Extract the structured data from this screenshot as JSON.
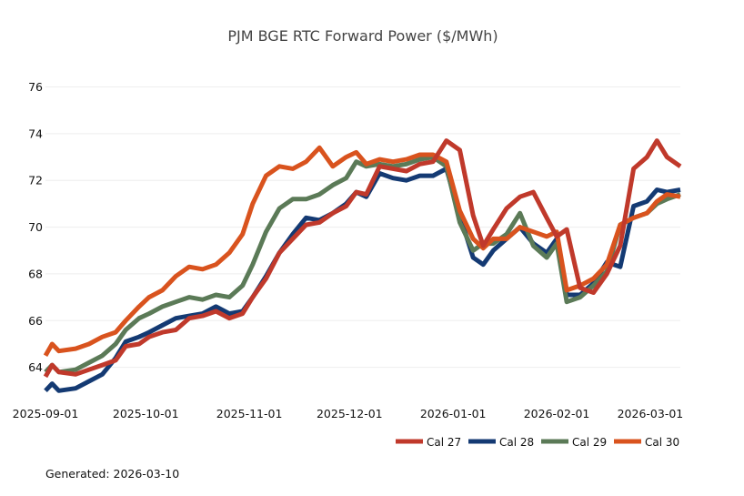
{
  "footer": {
    "generated": "Generated: 2026-03-10"
  },
  "chart_data": {
    "type": "line",
    "title": "PJM BGE RTC Forward Power ($/MWh)",
    "xlabel": "",
    "ylabel": "",
    "ylim": [
      62.7,
      76.8
    ],
    "xlim": [
      "2025-09-01",
      "2026-03-10"
    ],
    "grid": "horizontal",
    "legend_position": "bottom-right",
    "yticks": [
      64,
      66,
      68,
      70,
      72,
      74,
      76
    ],
    "xticks": [
      "2025-09-01",
      "2025-10-01",
      "2025-11-01",
      "2025-12-01",
      "2026-01-01",
      "2026-02-01",
      "2026-03-01"
    ],
    "x": [
      "2025-09-01",
      "2025-09-03",
      "2025-09-05",
      "2025-09-10",
      "2025-09-14",
      "2025-09-18",
      "2025-09-22",
      "2025-09-25",
      "2025-09-29",
      "2025-10-02",
      "2025-10-06",
      "2025-10-10",
      "2025-10-14",
      "2025-10-18",
      "2025-10-22",
      "2025-10-26",
      "2025-10-30",
      "2025-11-02",
      "2025-11-06",
      "2025-11-10",
      "2025-11-14",
      "2025-11-18",
      "2025-11-22",
      "2025-11-26",
      "2025-11-30",
      "2025-12-03",
      "2025-12-06",
      "2025-12-10",
      "2025-12-14",
      "2025-12-18",
      "2025-12-22",
      "2025-12-26",
      "2025-12-30",
      "2026-01-03",
      "2026-01-07",
      "2026-01-10",
      "2026-01-13",
      "2026-01-17",
      "2026-01-21",
      "2026-01-25",
      "2026-01-29",
      "2026-02-01",
      "2026-02-04",
      "2026-02-08",
      "2026-02-12",
      "2026-02-16",
      "2026-02-20",
      "2026-02-24",
      "2026-02-28",
      "2026-03-03",
      "2026-03-06",
      "2026-03-10"
    ],
    "series": [
      {
        "name": "Cal 27",
        "color": "#c0392b",
        "values": [
          63.6,
          64.1,
          63.8,
          63.7,
          63.9,
          64.1,
          64.3,
          64.9,
          65.0,
          65.3,
          65.5,
          65.6,
          66.1,
          66.2,
          66.4,
          66.1,
          66.3,
          67.0,
          67.8,
          68.9,
          69.5,
          70.1,
          70.2,
          70.6,
          70.9,
          71.5,
          71.4,
          72.6,
          72.5,
          72.4,
          72.7,
          72.8,
          73.7,
          73.3,
          70.5,
          69.2,
          69.9,
          70.8,
          71.3,
          71.5,
          70.4,
          69.6,
          69.9,
          67.4,
          67.2,
          68.0,
          69.2,
          72.5,
          73.0,
          73.7,
          73.0,
          72.6
        ]
      },
      {
        "name": "Cal 28",
        "color": "#143a73",
        "values": [
          63.0,
          63.3,
          63.0,
          63.1,
          63.4,
          63.7,
          64.4,
          65.1,
          65.3,
          65.5,
          65.8,
          66.1,
          66.2,
          66.3,
          66.6,
          66.3,
          66.4,
          67.0,
          67.9,
          68.9,
          69.7,
          70.4,
          70.3,
          70.6,
          71.0,
          71.5,
          71.3,
          72.3,
          72.1,
          72.0,
          72.2,
          72.2,
          72.5,
          70.5,
          68.7,
          68.4,
          69.0,
          69.5,
          70.0,
          69.3,
          68.9,
          69.5,
          67.1,
          67.1,
          67.6,
          68.5,
          68.3,
          70.9,
          71.1,
          71.6,
          71.5,
          71.6
        ]
      },
      {
        "name": "Cal 29",
        "color": "#5b7a57",
        "values": [
          63.8,
          64.1,
          63.8,
          63.9,
          64.2,
          64.5,
          65.0,
          65.6,
          66.1,
          66.3,
          66.6,
          66.8,
          67.0,
          66.9,
          67.1,
          67.0,
          67.5,
          68.4,
          69.8,
          70.8,
          71.2,
          71.2,
          71.4,
          71.8,
          72.1,
          72.8,
          72.6,
          72.7,
          72.6,
          72.7,
          72.9,
          73.0,
          72.6,
          70.2,
          69.0,
          69.3,
          69.3,
          69.7,
          70.6,
          69.2,
          68.7,
          69.3,
          66.8,
          67.0,
          67.5,
          68.1,
          70.1,
          70.4,
          70.6,
          71.0,
          71.2,
          71.4
        ]
      },
      {
        "name": "Cal 30",
        "color": "#d9531e",
        "values": [
          64.5,
          65.0,
          64.7,
          64.8,
          65.0,
          65.3,
          65.5,
          66.0,
          66.6,
          67.0,
          67.3,
          67.9,
          68.3,
          68.2,
          68.4,
          68.9,
          69.7,
          71.0,
          72.2,
          72.6,
          72.5,
          72.8,
          73.4,
          72.6,
          73.0,
          73.2,
          72.7,
          72.9,
          72.8,
          72.9,
          73.1,
          73.1,
          72.8,
          70.7,
          69.5,
          69.1,
          69.5,
          69.5,
          70.0,
          69.8,
          69.6,
          69.8,
          67.3,
          67.5,
          67.8,
          68.4,
          70.1,
          70.4,
          70.6,
          71.1,
          71.4,
          71.3
        ]
      }
    ]
  }
}
